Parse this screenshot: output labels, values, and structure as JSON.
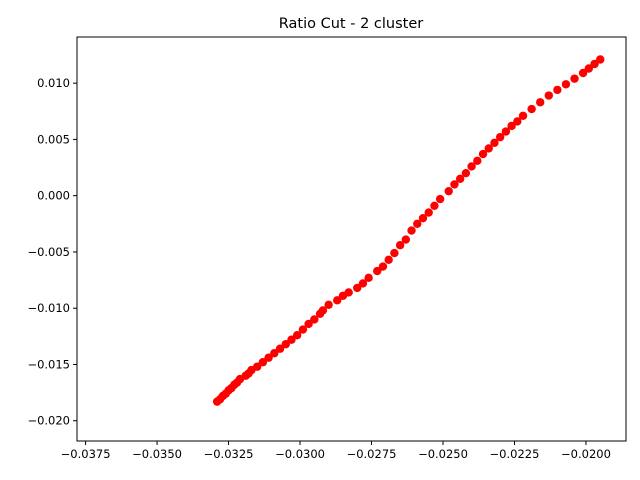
{
  "chart_data": {
    "type": "scatter",
    "title": "Ratio Cut - 2 cluster",
    "xlabel": "",
    "ylabel": "",
    "xlim": [
      -0.0378,
      -0.0186
    ],
    "ylim": [
      -0.0218,
      0.0141
    ],
    "xticks": [
      -0.0375,
      -0.035,
      -0.0325,
      -0.03,
      -0.0275,
      -0.025,
      -0.0225,
      -0.02
    ],
    "xtick_labels": [
      "−0.0375",
      "−0.0350",
      "−0.0325",
      "−0.0300",
      "−0.0275",
      "−0.0250",
      "−0.0225",
      "−0.0200"
    ],
    "yticks": [
      -0.02,
      -0.015,
      -0.01,
      -0.005,
      0.0,
      0.005,
      0.01
    ],
    "ytick_labels": [
      "−0.020",
      "−0.015",
      "−0.010",
      "−0.005",
      "0.000",
      "0.005",
      "0.010"
    ],
    "grid": false,
    "legend": "none",
    "color": "#ff0000",
    "points": [
      [
        -0.0329,
        -0.0183
      ],
      [
        -0.0328,
        -0.0181
      ],
      [
        -0.0327,
        -0.0178
      ],
      [
        -0.0326,
        -0.0176
      ],
      [
        -0.0325,
        -0.0173
      ],
      [
        -0.0324,
        -0.0171
      ],
      [
        -0.0323,
        -0.0168
      ],
      [
        -0.0322,
        -0.0166
      ],
      [
        -0.0321,
        -0.0163
      ],
      [
        -0.0319,
        -0.016
      ],
      [
        -0.0318,
        -0.0158
      ],
      [
        -0.0317,
        -0.0155
      ],
      [
        -0.0315,
        -0.0152
      ],
      [
        -0.0313,
        -0.0148
      ],
      [
        -0.0311,
        -0.0144
      ],
      [
        -0.0309,
        -0.014
      ],
      [
        -0.0307,
        -0.0136
      ],
      [
        -0.0305,
        -0.0132
      ],
      [
        -0.0303,
        -0.0128
      ],
      [
        -0.0301,
        -0.0124
      ],
      [
        -0.0299,
        -0.0119
      ],
      [
        -0.0297,
        -0.0114
      ],
      [
        -0.0295,
        -0.011
      ],
      [
        -0.0293,
        -0.0105
      ],
      [
        -0.0292,
        -0.0102
      ],
      [
        -0.029,
        -0.0097
      ],
      [
        -0.0287,
        -0.0093
      ],
      [
        -0.0285,
        -0.0089
      ],
      [
        -0.0283,
        -0.0086
      ],
      [
        -0.028,
        -0.0082
      ],
      [
        -0.0278,
        -0.0078
      ],
      [
        -0.0276,
        -0.0073
      ],
      [
        -0.0273,
        -0.0067
      ],
      [
        -0.0271,
        -0.0063
      ],
      [
        -0.0269,
        -0.0057
      ],
      [
        -0.0267,
        -0.0051
      ],
      [
        -0.0265,
        -0.0044
      ],
      [
        -0.0263,
        -0.0039
      ],
      [
        -0.0261,
        -0.0031
      ],
      [
        -0.0259,
        -0.0025
      ],
      [
        -0.0257,
        -0.002
      ],
      [
        -0.0255,
        -0.0015
      ],
      [
        -0.0253,
        -0.0009
      ],
      [
        -0.0251,
        -0.0003
      ],
      [
        -0.0248,
        0.0004
      ],
      [
        -0.0246,
        0.001
      ],
      [
        -0.0244,
        0.0015
      ],
      [
        -0.0242,
        0.002
      ],
      [
        -0.024,
        0.0026
      ],
      [
        -0.0238,
        0.0031
      ],
      [
        -0.0236,
        0.0037
      ],
      [
        -0.0234,
        0.0042
      ],
      [
        -0.0232,
        0.0047
      ],
      [
        -0.023,
        0.0052
      ],
      [
        -0.0228,
        0.0057
      ],
      [
        -0.0226,
        0.0062
      ],
      [
        -0.0224,
        0.0066
      ],
      [
        -0.0222,
        0.0071
      ],
      [
        -0.0219,
        0.0077
      ],
      [
        -0.0216,
        0.0083
      ],
      [
        -0.0213,
        0.0089
      ],
      [
        -0.021,
        0.0094
      ],
      [
        -0.0207,
        0.0099
      ],
      [
        -0.0204,
        0.0104
      ],
      [
        -0.0201,
        0.0109
      ],
      [
        -0.0199,
        0.0113
      ],
      [
        -0.0197,
        0.0117
      ],
      [
        -0.0195,
        0.0121
      ]
    ]
  }
}
